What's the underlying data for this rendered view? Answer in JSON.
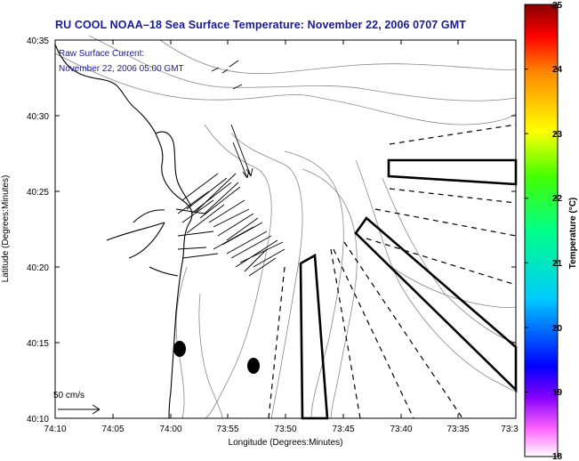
{
  "title": "RU COOL  NOAA–18  Sea Surface Temperature:  November 22, 2006 0707 GMT",
  "annotation": {
    "line1": "Raw Surface Current:",
    "line2": "November 22, 2006 05:00 GMT"
  },
  "scale_label": "50 cm/s",
  "axes": {
    "xlabel": "Longitude (Degrees:Minutes)",
    "ylabel": "Latitude (Degrees:Minutes)",
    "x_ticks": [
      "74:10",
      "74:05",
      "74:00",
      "73:55",
      "73:50",
      "73:45",
      "73:40",
      "73:35",
      "73:3"
    ],
    "y_ticks": [
      "40:35",
      "40:30",
      "40:25",
      "40:20",
      "40:15",
      "40:10"
    ]
  },
  "colorbar": {
    "label": "Temperature (°C)",
    "ticks": [
      "25",
      "24",
      "23",
      "22",
      "21",
      "20",
      "19",
      "18"
    ],
    "range": [
      18,
      25
    ]
  },
  "colors": {
    "title": "#1a1a9a",
    "frame": "#000000"
  }
}
